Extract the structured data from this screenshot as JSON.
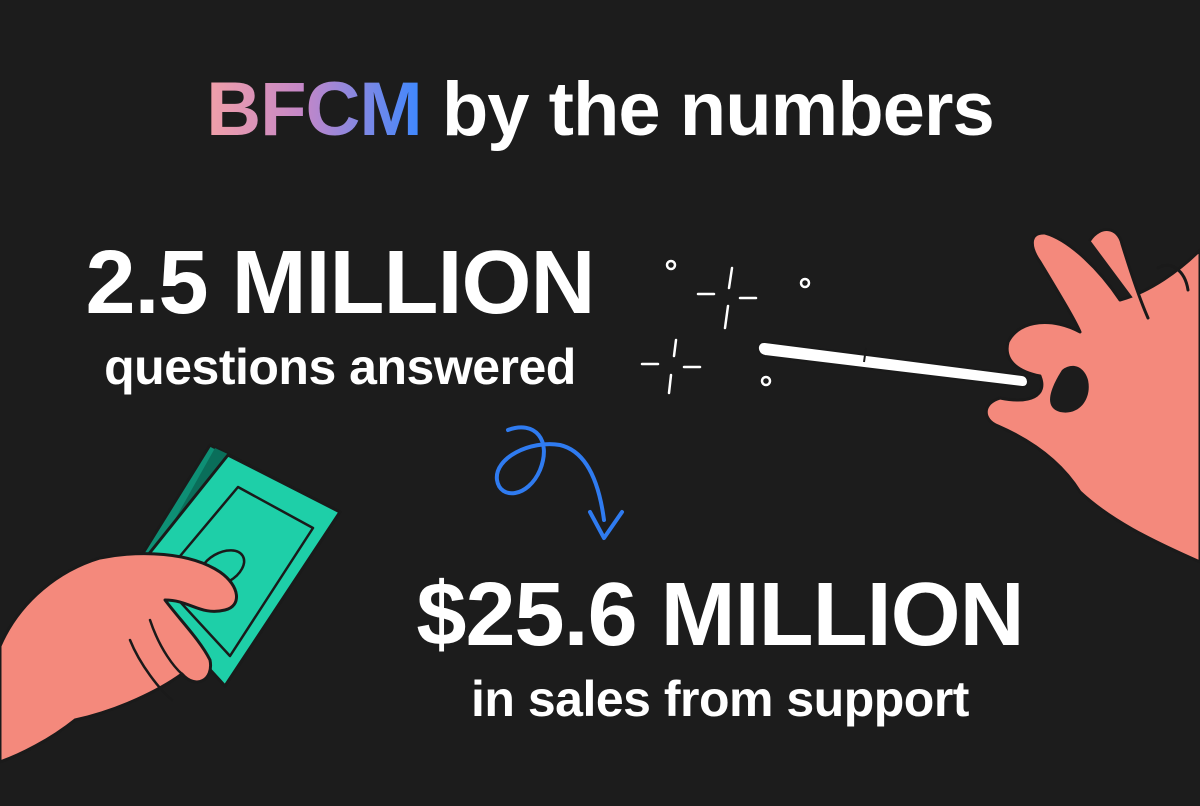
{
  "title": {
    "accent": "BFCM",
    "rest": " by the numbers"
  },
  "stats": [
    {
      "value": "2.5 MILLION",
      "caption": "questions answered"
    },
    {
      "value": "$25.6 MILLION",
      "caption": "in sales from support"
    }
  ],
  "colors": {
    "background": "#1c1c1c",
    "text": "#ffffff",
    "skin": "#f4897c",
    "money": "#1ecfa8",
    "arrow": "#2f7bf0",
    "gradient_start": "#f2a0a8",
    "gradient_end": "#3c88ff"
  },
  "icons": [
    "hand-holding-money-icon",
    "hand-holding-wand-icon",
    "magic-wand-icon",
    "sparkles-icon",
    "curly-arrow-icon"
  ]
}
